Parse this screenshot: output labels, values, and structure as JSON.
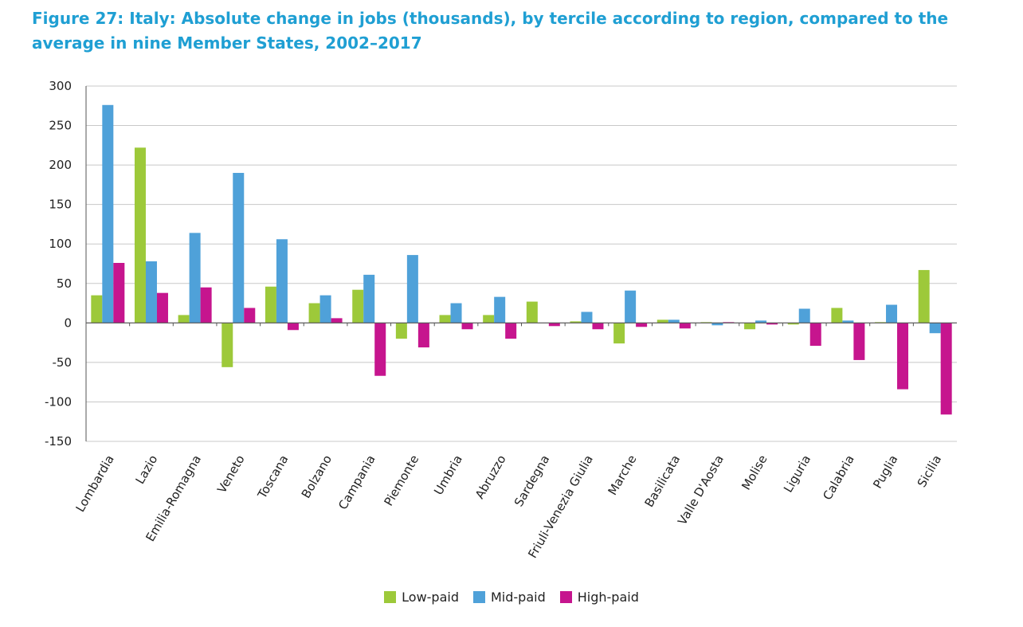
{
  "title": "Figure 27: Italy: Absolute change in jobs (thousands), by tercile according to region, compared to the average in nine Member States, 2002–2017",
  "colors": {
    "title": "#1f9fd3",
    "low": "#9dc93a",
    "mid": "#4fa1d9",
    "high": "#c6158e",
    "grid": "#c8c8c8",
    "axis": "#555555"
  },
  "chart_data": {
    "type": "bar",
    "categories": [
      "Lombardia",
      "Lazio",
      "Emilia-Romagna",
      "Veneto",
      "Toscana",
      "Bolzano",
      "Campania",
      "Piemonte",
      "Umbria",
      "Abruzzo",
      "Sardegna",
      "Friuli-Venezia Giulia",
      "Marche",
      "Basilicata",
      "Valle D'Aosta",
      "Molise",
      "Liguria",
      "Calabria",
      "Puglia",
      "Sicilia"
    ],
    "series": [
      {
        "name": "Low-paid",
        "color": "#9dc93a",
        "values": [
          35,
          222,
          10,
          -56,
          46,
          25,
          42,
          -20,
          10,
          10,
          27,
          2,
          -26,
          4,
          1,
          -8,
          -2,
          19,
          1,
          67
        ]
      },
      {
        "name": "Mid-paid",
        "color": "#4fa1d9",
        "values": [
          276,
          78,
          114,
          190,
          106,
          35,
          61,
          86,
          25,
          33,
          0,
          14,
          41,
          4,
          -3,
          3,
          18,
          3,
          23,
          -13
        ]
      },
      {
        "name": "High-paid",
        "color": "#c6158e",
        "values": [
          76,
          38,
          45,
          19,
          -9,
          6,
          -67,
          -31,
          -8,
          -20,
          -4,
          -8,
          -5,
          -7,
          1,
          -2,
          -29,
          -47,
          -84,
          -116
        ]
      }
    ],
    "yticks": [
      300,
      250,
      200,
      150,
      100,
      50,
      0,
      -50,
      -100,
      -150
    ],
    "ylim": [
      -150,
      300
    ],
    "grid": true,
    "legend_position": "bottom-center",
    "xlabel": "",
    "ylabel": ""
  }
}
